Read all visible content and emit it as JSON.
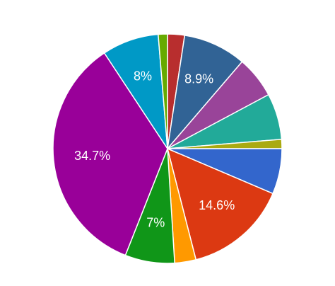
{
  "chart_data": {
    "type": "pie",
    "values": [
      2.4,
      8.9,
      5.9,
      6.5,
      1.3,
      6.4,
      14.6,
      3.0,
      7,
      34.7,
      8,
      1.3
    ],
    "value_labels": [
      null,
      "8.9%",
      null,
      null,
      null,
      null,
      "14.6%",
      null,
      "7%",
      "34.7%",
      "8%",
      null
    ],
    "colors": [
      "#b82e2e",
      "#316395",
      "#994499",
      "#22aa99",
      "#aaaa11",
      "#3366cc",
      "#dc3912",
      "#ff9900",
      "#109618",
      "#990099",
      "#0099c6",
      "#66aa00"
    ]
  }
}
